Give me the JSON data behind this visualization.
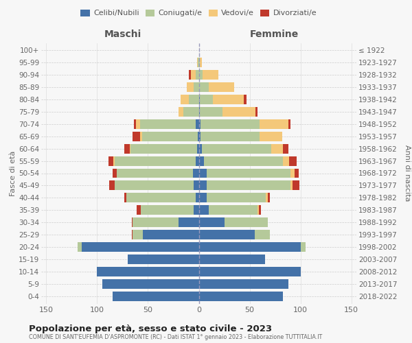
{
  "age_groups": [
    "0-4",
    "5-9",
    "10-14",
    "15-19",
    "20-24",
    "25-29",
    "30-34",
    "35-39",
    "40-44",
    "45-49",
    "50-54",
    "55-59",
    "60-64",
    "65-69",
    "70-74",
    "75-79",
    "80-84",
    "85-89",
    "90-94",
    "95-99",
    "100+"
  ],
  "birth_years": [
    "2018-2022",
    "2013-2017",
    "2008-2012",
    "2003-2007",
    "1998-2002",
    "1993-1997",
    "1988-1992",
    "1983-1987",
    "1978-1982",
    "1973-1977",
    "1968-1972",
    "1963-1967",
    "1958-1962",
    "1953-1957",
    "1948-1952",
    "1943-1947",
    "1938-1942",
    "1933-1937",
    "1928-1932",
    "1923-1927",
    "≤ 1922"
  ],
  "maschi_celibi": [
    85,
    95,
    100,
    70,
    115,
    55,
    20,
    5,
    3,
    5,
    6,
    3,
    2,
    1,
    3,
    0,
    0,
    0,
    0,
    0,
    0
  ],
  "maschi_coniugati": [
    0,
    0,
    0,
    0,
    4,
    10,
    45,
    52,
    68,
    78,
    75,
    80,
    65,
    55,
    55,
    15,
    10,
    5,
    3,
    1,
    0
  ],
  "maschi_vedovi": [
    0,
    0,
    0,
    0,
    0,
    0,
    0,
    0,
    0,
    0,
    0,
    1,
    1,
    2,
    4,
    5,
    8,
    7,
    5,
    1,
    0
  ],
  "maschi_divorziati": [
    0,
    0,
    0,
    0,
    0,
    1,
    1,
    4,
    2,
    5,
    4,
    5,
    5,
    7,
    2,
    0,
    0,
    0,
    2,
    0,
    0
  ],
  "femmine_nubili": [
    83,
    88,
    100,
    65,
    100,
    55,
    25,
    10,
    8,
    8,
    8,
    5,
    3,
    2,
    2,
    1,
    1,
    0,
    0,
    0,
    0
  ],
  "femmine_coniugate": [
    0,
    0,
    0,
    0,
    5,
    15,
    43,
    48,
    58,
    82,
    82,
    78,
    68,
    58,
    58,
    22,
    13,
    10,
    4,
    1,
    0
  ],
  "femmine_vedove": [
    0,
    0,
    0,
    0,
    0,
    0,
    0,
    1,
    2,
    2,
    4,
    6,
    12,
    22,
    28,
    33,
    30,
    25,
    15,
    2,
    0
  ],
  "femmine_divorziate": [
    0,
    0,
    0,
    0,
    0,
    0,
    0,
    2,
    2,
    7,
    4,
    7,
    5,
    0,
    2,
    2,
    3,
    0,
    0,
    0,
    0
  ],
  "color_celibi": "#4472a8",
  "color_coniugati": "#b5c99a",
  "color_vedovi": "#f4c87a",
  "color_divorziati": "#c0392b",
  "xlim": 155,
  "title": "Popolazione per età, sesso e stato civile - 2023",
  "subtitle": "COMUNE DI SANT'EUFEMIA D'ASPROMONTE (RC) - Dati ISTAT 1° gennaio 2023 - Elaborazione TUTTITALIA.IT",
  "ylabel_left": "Fasce di età",
  "ylabel_right": "Anni di nascita",
  "label_maschi": "Maschi",
  "label_femmine": "Femmine",
  "legend_labels": [
    "Celibi/Nubili",
    "Coniugati/e",
    "Vedovi/e",
    "Divorziati/e"
  ],
  "bg_color": "#f7f7f7"
}
